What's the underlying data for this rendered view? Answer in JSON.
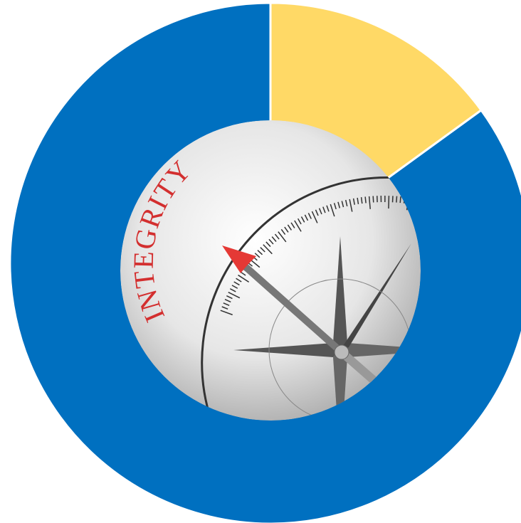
{
  "chart_data": {
    "type": "pie",
    "categories": [
      null,
      null
    ],
    "values": [
      15,
      85
    ],
    "colors": [
      "#FFD966",
      "#0070C0"
    ],
    "start_angle": 0,
    "direction": "clockwise",
    "hole_text": "INTEGRITY"
  }
}
